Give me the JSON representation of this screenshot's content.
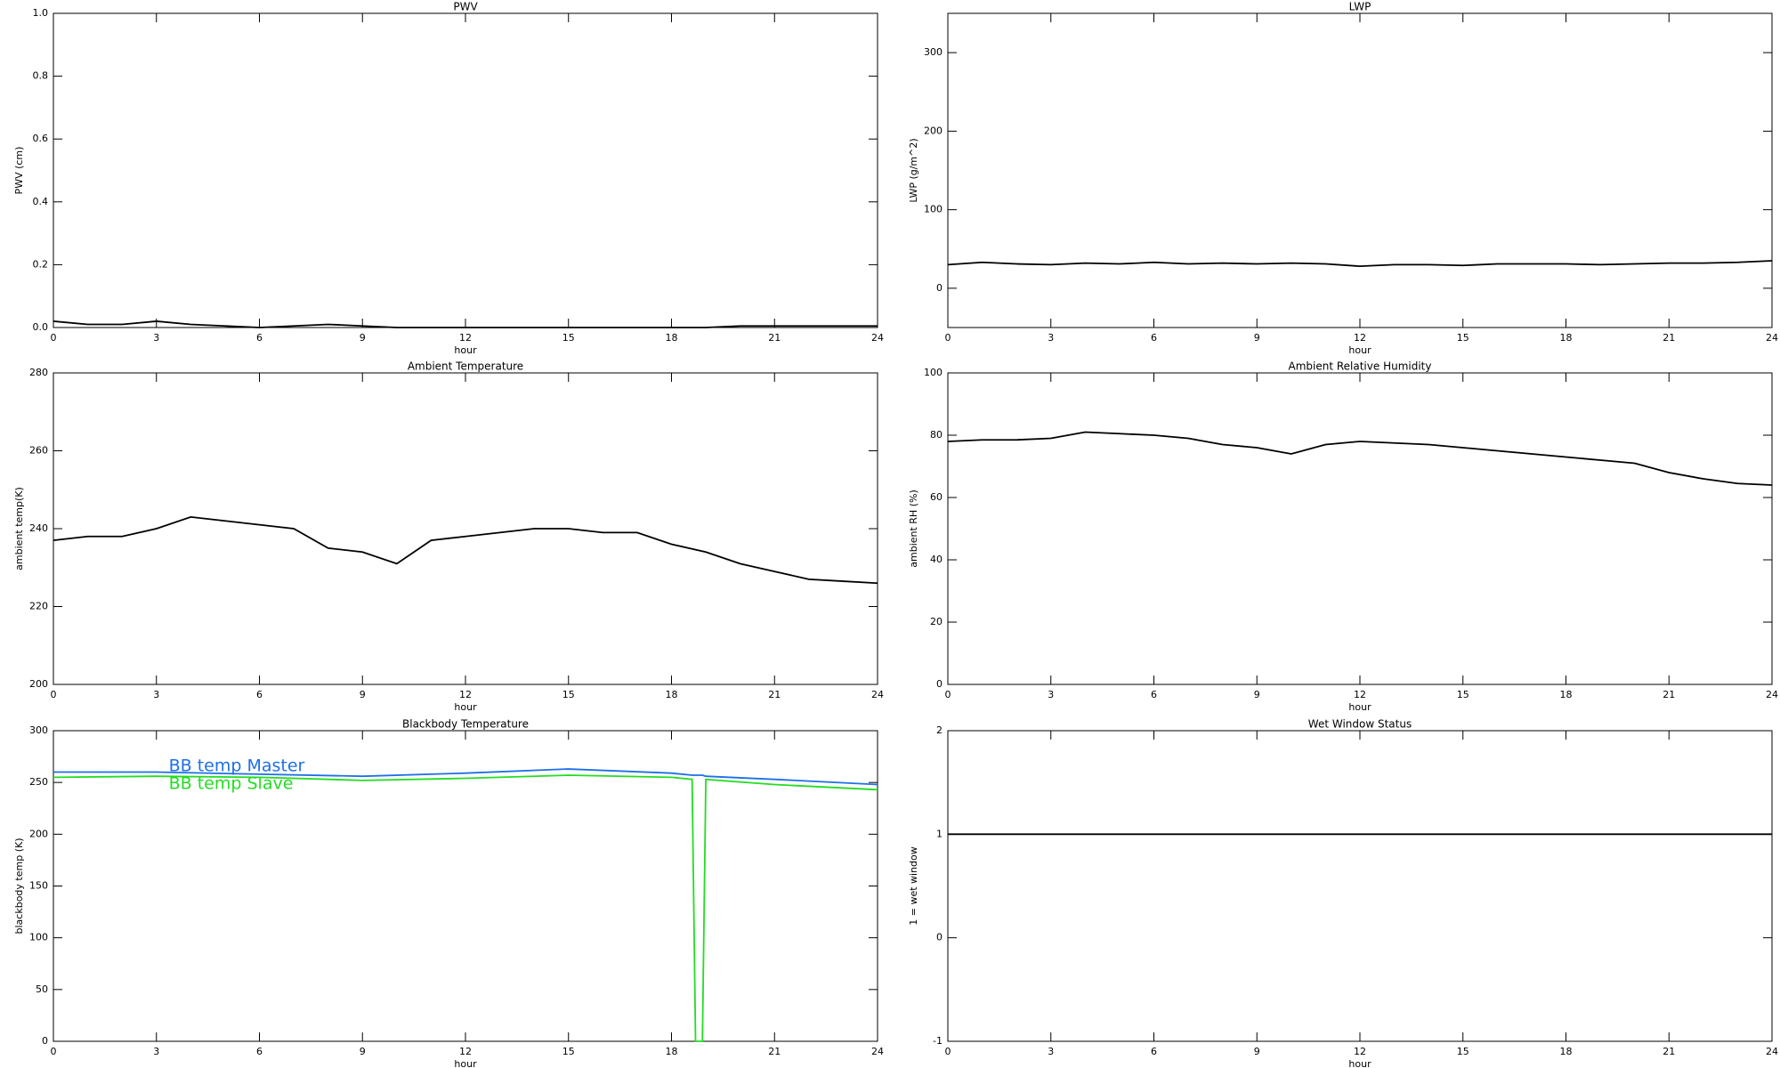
{
  "chart_data": [
    {
      "type": "line",
      "title": "PWV",
      "xlabel": "hour",
      "ylabel": "PWV (cm)",
      "x": [
        0,
        1,
        2,
        3,
        4,
        5,
        6,
        7,
        8,
        9,
        10,
        11,
        12,
        13,
        14,
        15,
        16,
        17,
        18,
        19,
        20,
        21,
        22,
        23,
        24
      ],
      "values": [
        0.02,
        0.01,
        0.01,
        0.02,
        0.01,
        0.005,
        0,
        0.005,
        0.01,
        0.005,
        0,
        0,
        0,
        0,
        0,
        0,
        0,
        0,
        0,
        0,
        0.005,
        0.005,
        0.005,
        0.005,
        0.005
      ],
      "color": "#000000",
      "xlim": [
        0,
        24
      ],
      "xticks": [
        0,
        3,
        6,
        9,
        12,
        15,
        18,
        21,
        24
      ],
      "ylim": [
        0,
        1
      ],
      "yticks": [
        {
          "value": 0,
          "label": "0.0"
        },
        {
          "value": 0.2,
          "label": "0.2"
        },
        {
          "value": 0.4,
          "label": "0.4"
        },
        {
          "value": 0.6,
          "label": "0.6"
        },
        {
          "value": 0.8,
          "label": "0.8"
        },
        {
          "value": 1,
          "label": "1.0"
        }
      ]
    },
    {
      "type": "line",
      "title": "LWP",
      "xlabel": "hour",
      "ylabel": "LWP (g/m^2)",
      "x": [
        0,
        1,
        2,
        3,
        4,
        5,
        6,
        7,
        8,
        9,
        10,
        11,
        12,
        13,
        14,
        15,
        16,
        17,
        18,
        19,
        20,
        21,
        22,
        23,
        24
      ],
      "values": [
        30,
        33,
        31,
        30,
        32,
        31,
        33,
        31,
        32,
        31,
        32,
        31,
        28,
        30,
        30,
        29,
        31,
        31,
        31,
        30,
        31,
        32,
        32,
        33,
        35
      ],
      "color": "#000000",
      "xlim": [
        0,
        24
      ],
      "xticks": [
        0,
        3,
        6,
        9,
        12,
        15,
        18,
        21,
        24
      ],
      "ylim": [
        -50,
        350
      ],
      "yticks": [
        0,
        100,
        200,
        300
      ]
    },
    {
      "type": "line",
      "title": "Ambient Temperature",
      "xlabel": "hour",
      "ylabel": "ambient temp(K)",
      "x": [
        0,
        1,
        2,
        3,
        4,
        5,
        6,
        7,
        8,
        9,
        10,
        11,
        12,
        13,
        14,
        15,
        16,
        17,
        18,
        19,
        20,
        21,
        22,
        23,
        24
      ],
      "values": [
        237,
        238,
        238,
        240,
        243,
        242,
        241,
        240,
        235,
        234,
        231,
        237,
        238,
        239,
        240,
        240,
        239,
        239,
        236,
        234,
        231,
        229,
        227,
        226.5,
        226
      ],
      "color": "#000000",
      "xlim": [
        0,
        24
      ],
      "xticks": [
        0,
        3,
        6,
        9,
        12,
        15,
        18,
        21,
        24
      ],
      "ylim": [
        200,
        280
      ],
      "yticks": [
        200,
        220,
        240,
        260,
        280
      ]
    },
    {
      "type": "line",
      "title": "Ambient Relative Humidity",
      "xlabel": "hour",
      "ylabel": "ambient RH (%)",
      "x": [
        0,
        1,
        2,
        3,
        4,
        5,
        6,
        7,
        8,
        9,
        10,
        11,
        12,
        13,
        14,
        15,
        16,
        17,
        18,
        19,
        20,
        21,
        22,
        23,
        24
      ],
      "values": [
        78,
        78.5,
        78.5,
        79,
        81,
        80.5,
        80,
        79,
        77,
        76,
        74,
        77,
        78,
        77.5,
        77,
        76,
        75,
        74,
        73,
        72,
        71,
        68,
        66,
        64.5,
        64
      ],
      "color": "#000000",
      "xlim": [
        0,
        24
      ],
      "xticks": [
        0,
        3,
        6,
        9,
        12,
        15,
        18,
        21,
        24
      ],
      "ylim": [
        0,
        100
      ],
      "yticks": [
        0,
        20,
        40,
        60,
        80,
        100
      ]
    },
    {
      "type": "line",
      "title": "Blackbody Temperature",
      "xlabel": "hour",
      "ylabel": "blackbody temp (K)",
      "x": [
        0,
        3,
        6,
        9,
        12,
        15,
        18,
        18.6,
        18.7,
        18.9,
        19,
        21,
        24
      ],
      "series": [
        {
          "name": "BB temp Master",
          "color": "#1e6fe6",
          "values": [
            260,
            260,
            258,
            256,
            259,
            263,
            259,
            257,
            257,
            257,
            256,
            253,
            248
          ]
        },
        {
          "name": "BB temp Slave",
          "color": "#22dd22",
          "values": [
            255,
            256,
            255,
            252,
            254,
            257,
            255,
            253,
            0,
            0,
            253,
            248,
            243
          ]
        }
      ],
      "legend": "upper left",
      "xlim": [
        0,
        24
      ],
      "xticks": [
        0,
        3,
        6,
        9,
        12,
        15,
        18,
        21,
        24
      ],
      "ylim": [
        0,
        300
      ],
      "yticks": [
        0,
        50,
        100,
        150,
        200,
        250,
        300
      ]
    },
    {
      "type": "line",
      "title": "Wet Window Status",
      "xlabel": "hour",
      "ylabel": "1 = wet window",
      "x": [
        0,
        24
      ],
      "values": [
        1,
        1
      ],
      "color": "#000000",
      "xlim": [
        0,
        24
      ],
      "xticks": [
        0,
        3,
        6,
        9,
        12,
        15,
        18,
        21,
        24
      ],
      "ylim": [
        -1,
        2
      ],
      "yticks": [
        -1,
        0,
        1,
        2
      ]
    }
  ]
}
